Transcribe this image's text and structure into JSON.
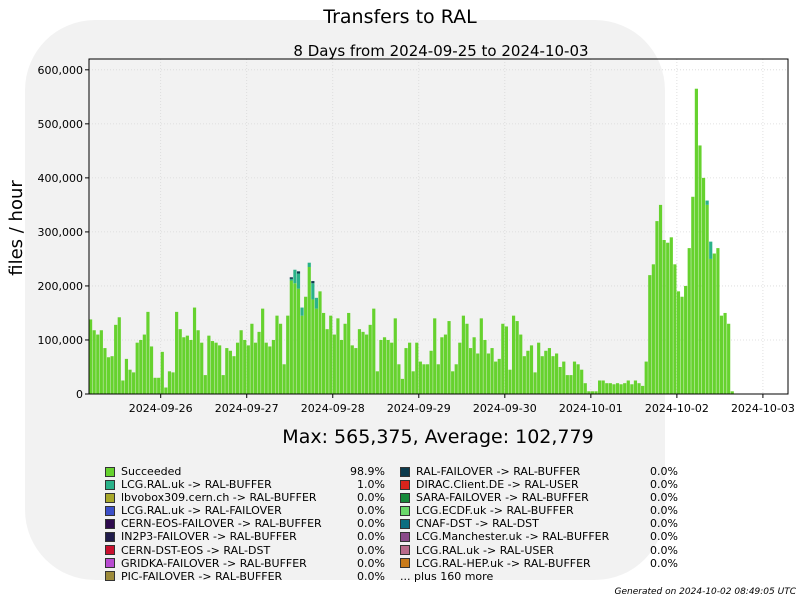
{
  "chart_data": {
    "type": "bar",
    "stacked": true,
    "title": "Transfers to RAL",
    "subtitle": "8 Days from 2024-09-25 to 2024-10-03",
    "ylabel": "files / hour",
    "xlabel": "",
    "ylim": [
      0,
      620000
    ],
    "yticks": [
      "0",
      "100,000",
      "200,000",
      "300,000",
      "400,000",
      "500,000",
      "600,000"
    ],
    "ytick_values": [
      0,
      100000,
      200000,
      300000,
      400000,
      500000,
      600000
    ],
    "xlim": [
      "2024-09-25 04:00",
      "2024-10-03 07:00"
    ],
    "xticks": [
      "2024-09-26",
      "2024-09-27",
      "2024-09-28",
      "2024-09-29",
      "2024-09-30",
      "2024-10-01",
      "2024-10-02",
      "2024-10-03"
    ],
    "grid": true,
    "summary": "Max: 565,375, Average: 102,779",
    "bin_hours": 1,
    "start": "2024-09-25 04:00",
    "series": [
      {
        "name": "Succeeded",
        "color": "#66d22e",
        "values": [
          138000,
          118000,
          110000,
          118000,
          85000,
          68000,
          70000,
          128000,
          142000,
          25000,
          65000,
          45000,
          40000,
          95000,
          100000,
          110000,
          152000,
          88000,
          30000,
          30000,
          78000,
          12000,
          42000,
          40000,
          152000,
          120000,
          105000,
          108000,
          100000,
          160000,
          118000,
          95000,
          35000,
          108000,
          98000,
          95000,
          90000,
          35000,
          85000,
          80000,
          70000,
          95000,
          118000,
          100000,
          90000,
          130000,
          95000,
          115000,
          158000,
          95000,
          88000,
          100000,
          145000,
          130000,
          55000,
          145000,
          210000,
          205000,
          195000,
          145000,
          180000,
          235000,
          175000,
          158000,
          190000,
          150000,
          120000,
          145000,
          110000,
          140000,
          100000,
          130000,
          150000,
          90000,
          85000,
          120000,
          115000,
          110000,
          128000,
          158000,
          42000,
          100000,
          105000,
          100000,
          95000,
          140000,
          55000,
          28000,
          85000,
          95000,
          42000,
          95000,
          60000,
          55000,
          55000,
          80000,
          140000,
          55000,
          105000,
          110000,
          135000,
          42000,
          55000,
          95000,
          145000,
          130000,
          85000,
          105000,
          75000,
          140000,
          100000,
          75000,
          85000,
          60000,
          65000,
          130000,
          125000,
          45000,
          145000,
          135000,
          110000,
          70000,
          80000,
          90000,
          40000,
          95000,
          70000,
          80000,
          85000,
          70000,
          75000,
          50000,
          60000,
          35000,
          35000,
          60000,
          55000,
          45000,
          20000,
          5000,
          5000,
          5000,
          25000,
          25000,
          20000,
          20000,
          18000,
          20000,
          18000,
          20000,
          25000,
          18000,
          25000,
          20000,
          15000,
          60000,
          220000,
          240000,
          320000,
          350000,
          285000,
          280000,
          290000,
          240000,
          190000,
          180000,
          200000,
          270000,
          365000,
          565000,
          460000,
          400000,
          350000,
          250000,
          260000,
          270000,
          145000,
          150000,
          130000,
          5000,
          0,
          0,
          0,
          0,
          0,
          0,
          0,
          0,
          0,
          0,
          0,
          0,
          0,
          0,
          0,
          0,
          0
        ]
      },
      {
        "name": "LCG.RAL.uk -> RAL-BUFFER",
        "color": "#2ab289",
        "values_sparse": {
          "56": 3000,
          "57": 25000,
          "58": 28000,
          "59": 15000,
          "61": 8000,
          "62": 30000,
          "63": 20000,
          "172": 8000,
          "173": 32000
        }
      },
      {
        "name": "RAL-FAILOVER -> RAL-BUFFER",
        "color": "#0d3b4d",
        "values_sparse": {
          "56": 3000,
          "58": 4000,
          "62": 4000
        }
      }
    ]
  },
  "legend": {
    "left": [
      {
        "label": "Succeeded",
        "pct": "98.9%",
        "color": "#66d22e"
      },
      {
        "label": "LCG.RAL.uk -> RAL-BUFFER",
        "pct": "1.0%",
        "color": "#2ab289"
      },
      {
        "label": "lbvobox309.cern.ch -> RAL-BUFFER",
        "pct": "0.0%",
        "color": "#a8a82a"
      },
      {
        "label": "LCG.RAL.uk -> RAL-FAILOVER",
        "pct": "0.0%",
        "color": "#3b4fc8"
      },
      {
        "label": "CERN-EOS-FAILOVER -> RAL-BUFFER",
        "pct": "0.0%",
        "color": "#2e0a4d"
      },
      {
        "label": "IN2P3-FAILOVER -> RAL-BUFFER",
        "pct": "0.0%",
        "color": "#201b4a"
      },
      {
        "label": "CERN-DST-EOS -> RAL-DST",
        "pct": "0.0%",
        "color": "#c8102e"
      },
      {
        "label": "GRIDKA-FAILOVER -> RAL-BUFFER",
        "pct": "0.0%",
        "color": "#b84bd1"
      },
      {
        "label": "PIC-FAILOVER -> RAL-BUFFER",
        "pct": "0.0%",
        "color": "#9c8a3a"
      }
    ],
    "right": [
      {
        "label": "RAL-FAILOVER -> RAL-BUFFER",
        "pct": "0.0%",
        "color": "#0d3b4d"
      },
      {
        "label": "DIRAC.Client.DE -> RAL-USER",
        "pct": "0.0%",
        "color": "#d8241c"
      },
      {
        "label": "SARA-FAILOVER -> RAL-BUFFER",
        "pct": "0.0%",
        "color": "#178a3a"
      },
      {
        "label": "LCG.ECDF.uk -> RAL-BUFFER",
        "pct": "0.0%",
        "color": "#6ad86a"
      },
      {
        "label": "CNAF-DST -> RAL-DST",
        "pct": "0.0%",
        "color": "#0b6e80"
      },
      {
        "label": "LCG.Manchester.uk -> RAL-BUFFER",
        "pct": "0.0%",
        "color": "#8a4a8a"
      },
      {
        "label": "LCG.RAL.uk -> RAL-USER",
        "pct": "0.0%",
        "color": "#b86a8a"
      },
      {
        "label": "LCG.RAL-HEP.uk -> RAL-BUFFER",
        "pct": "0.0%",
        "color": "#c87a1a"
      }
    ],
    "more": "... plus 160 more"
  },
  "footer": "Generated on 2024-10-02 08:49:05 UTC"
}
